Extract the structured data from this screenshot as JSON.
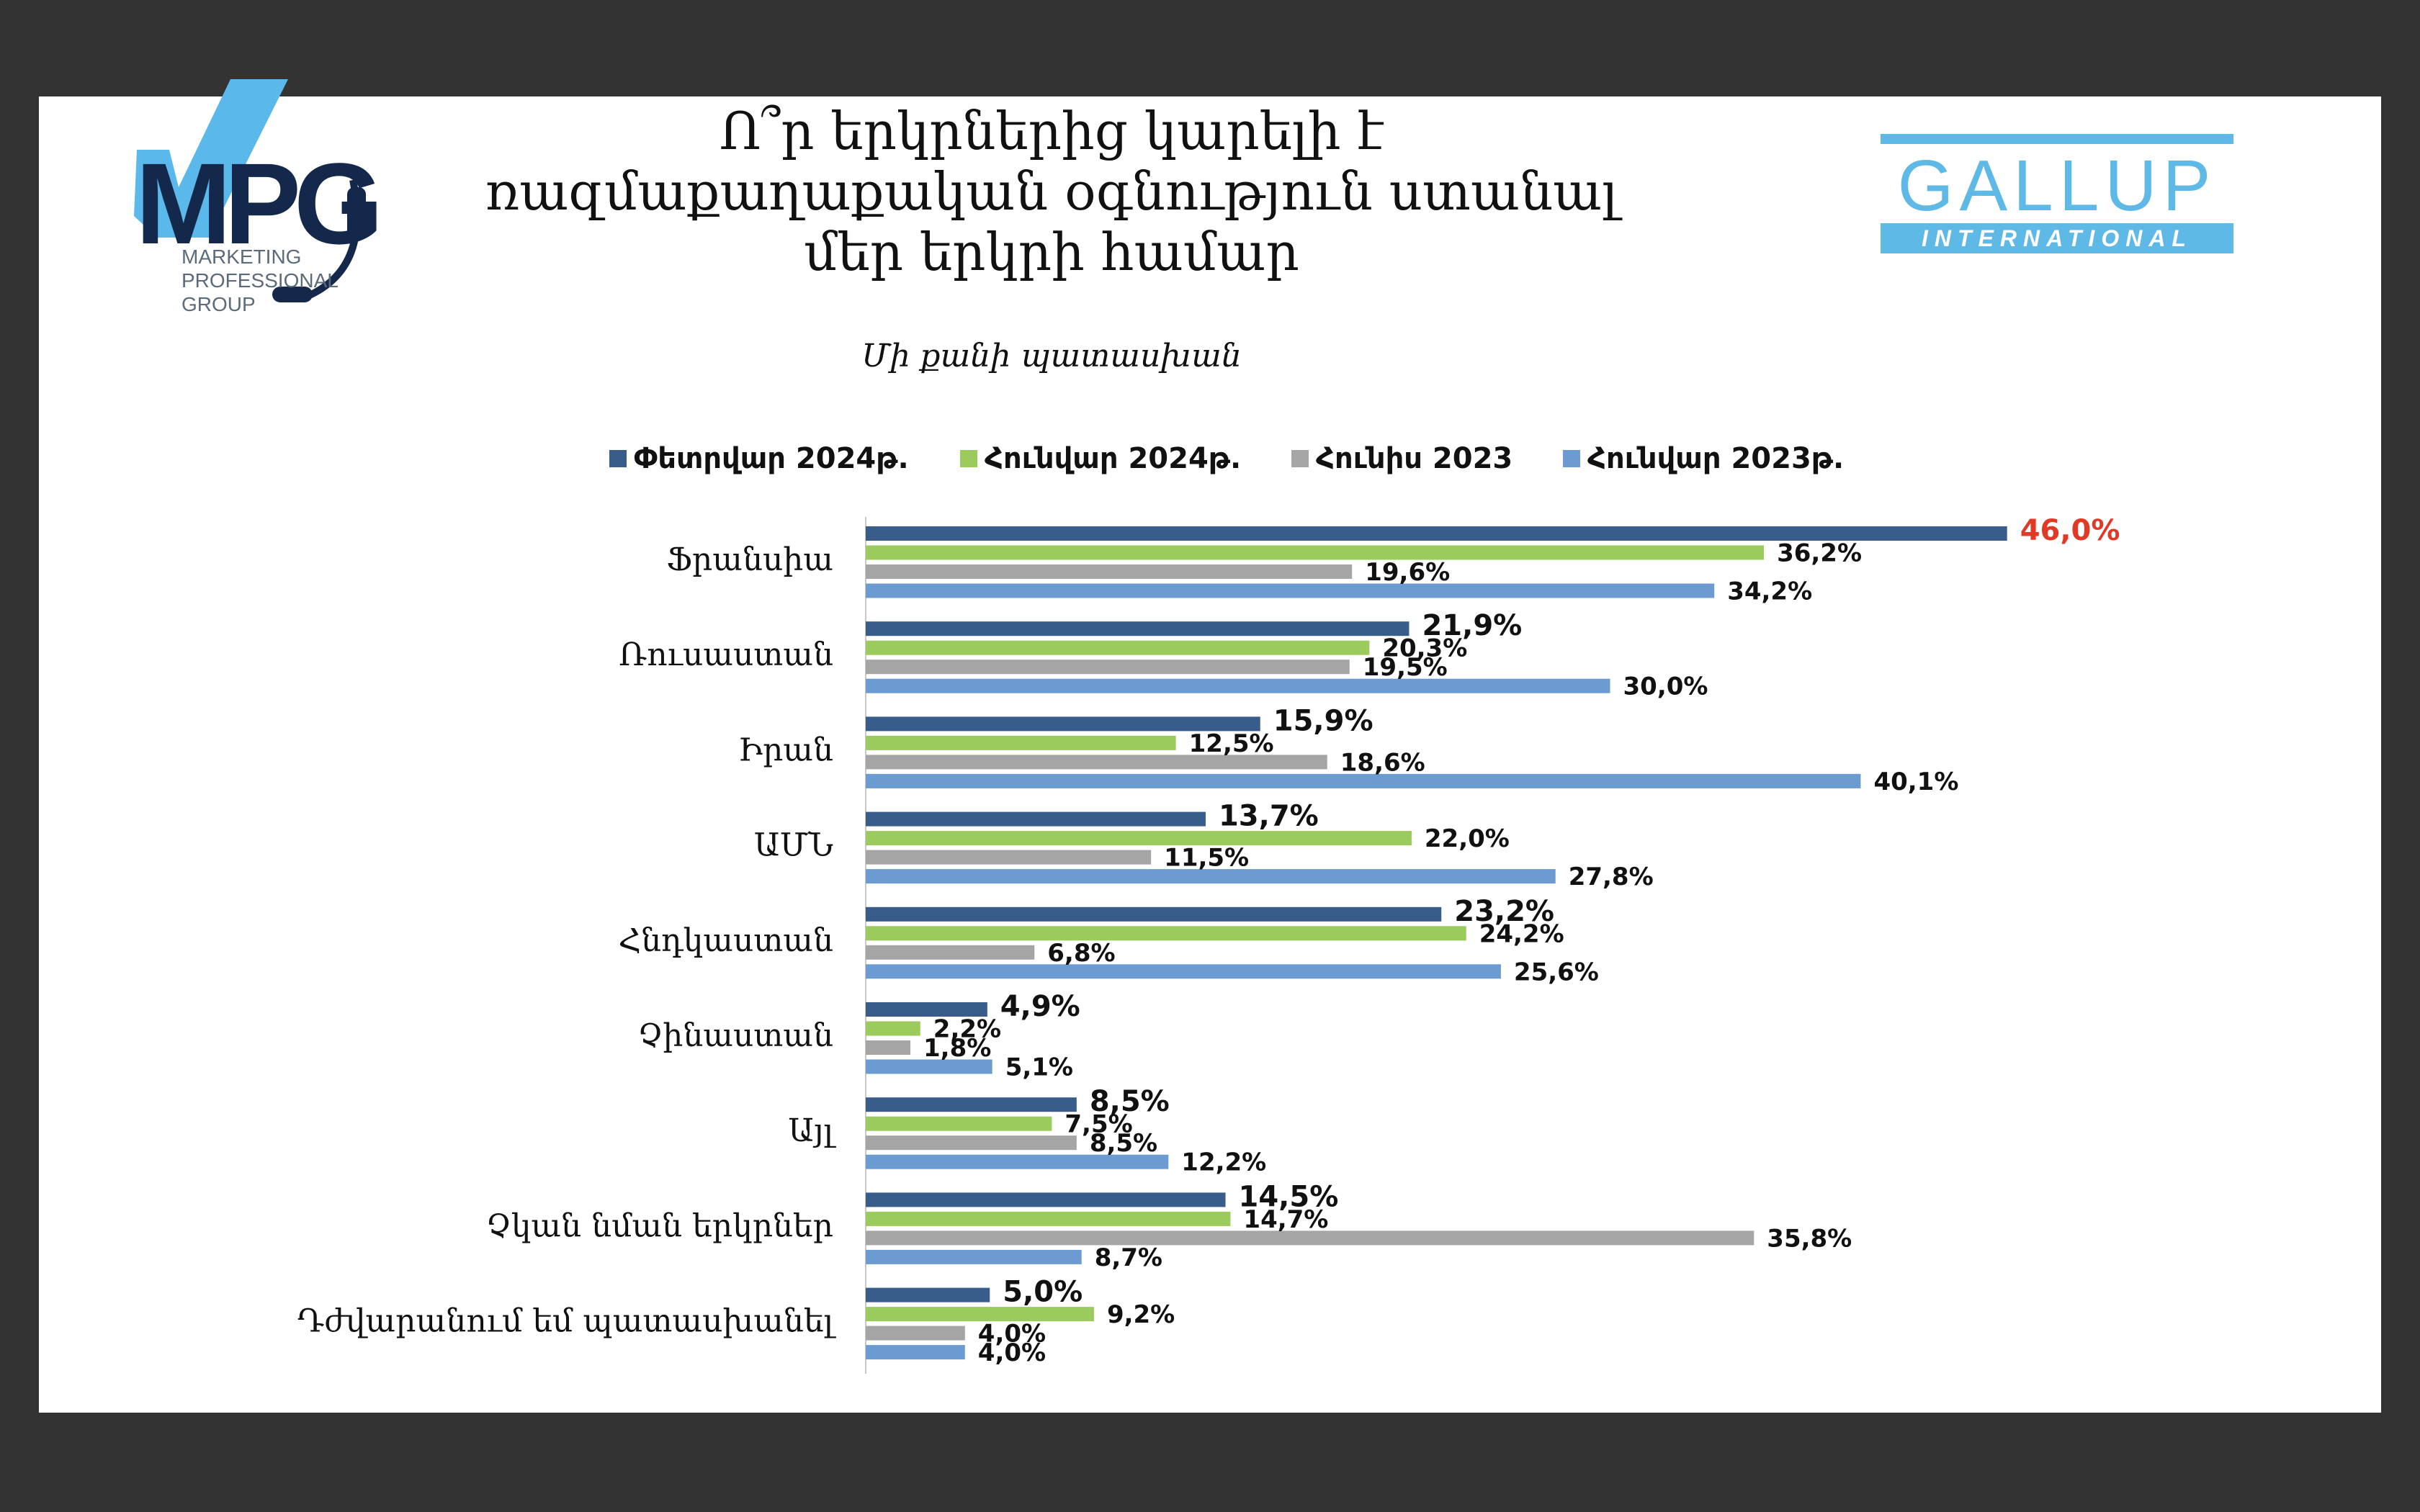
{
  "header": {
    "title": "Ո՞ր երկրներից կարելի է ռազմաքաղաքական օգնություն ստանալ մեր երկրի համար",
    "subtitle": "Մի քանի պատասխան"
  },
  "logos": {
    "mpg_mark": "MPG",
    "mpg_subtext": "MARKETING\nPROFESSIONAL\nGROUP",
    "gallup_word": "GALLUP",
    "gallup_band": "INTERNATIONAL"
  },
  "colors": {
    "feb2024": "#385d8a",
    "jan2024": "#9bcb5c",
    "jul2023": "#a5a5a5",
    "jan2023": "#6b9bd1",
    "highlight_label": "#e03a26",
    "mpg_navy": "#14284b",
    "mpg_blue": "#5ab8ea",
    "gallup_blue": "#5fb9e6"
  },
  "chart_data": {
    "type": "bar",
    "orientation": "horizontal",
    "title": "Ո՞ր երկրներից կարելի է ռազմաքաղաքական օգնություն ստանալ մեր երկրի համար",
    "subtitle": "Մի քանի պատասխան",
    "legend_position": "top",
    "xlim": [
      0,
      50
    ],
    "unit": "%",
    "categories": [
      "Ֆրանսիա",
      "Ռուսաստան",
      "Իրան",
      "ԱՄՆ",
      "Հնդկաստան",
      "Չինաստան",
      "Այլ",
      "Չկան նման երկրներ",
      "Դժվարանում եմ պատասխանել"
    ],
    "series": [
      {
        "name": "Փետրվար 2024թ.",
        "color": "#385d8a",
        "values": [
          46.0,
          21.9,
          15.9,
          13.7,
          23.2,
          4.9,
          8.5,
          14.5,
          5.0
        ]
      },
      {
        "name": "Հունվար 2024թ.",
        "color": "#9bcb5c",
        "values": [
          36.2,
          20.3,
          12.5,
          22.0,
          24.2,
          2.2,
          7.5,
          14.7,
          9.2
        ]
      },
      {
        "name": "Հունիս 2023",
        "color": "#a5a5a5",
        "values": [
          19.6,
          19.5,
          18.6,
          11.5,
          6.8,
          1.8,
          8.5,
          35.8,
          4.0
        ]
      },
      {
        "name": "Հունվար 2023թ.",
        "color": "#6b9bd1",
        "values": [
          34.2,
          30.0,
          40.1,
          27.8,
          25.6,
          5.1,
          12.2,
          8.7,
          4.0
        ]
      }
    ],
    "value_labels": [
      [
        "46,0%",
        "21,9%",
        "15,9%",
        "13,7%",
        "23,2%",
        "4,9%",
        "8,5%",
        "14,5%",
        "5,0%"
      ],
      [
        "36,2%",
        "20,3%",
        "12,5%",
        "22,0%",
        "24,2%",
        "2,2%",
        "7,5%",
        "14,7%",
        "9,2%"
      ],
      [
        "19,6%",
        "19,5%",
        "18,6%",
        "11,5%",
        "6,8%",
        "1,8%",
        "8,5%",
        "35,8%",
        "4,0%"
      ],
      [
        "34,2%",
        "30,0%",
        "40,1%",
        "27,8%",
        "25,6%",
        "5,1%",
        "12,2%",
        "8,7%",
        "4,0%"
      ]
    ]
  }
}
